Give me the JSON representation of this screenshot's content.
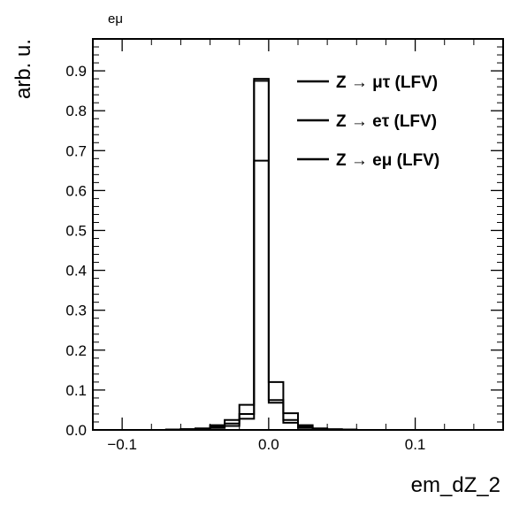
{
  "chart_data": {
    "type": "histogram",
    "channel_label": "eμ",
    "xlabel": "em_dZ_2",
    "ylabel": "arb. u.",
    "xlim": [
      -0.12,
      0.16
    ],
    "ylim": [
      0,
      0.98
    ],
    "x_ticks": [
      -0.1,
      0.0,
      0.1
    ],
    "x_tick_labels": [
      "−0.1",
      "0.0",
      "0.1"
    ],
    "y_ticks": [
      0,
      0.1,
      0.2,
      0.3,
      0.4,
      0.5,
      0.6,
      0.7,
      0.8,
      0.9
    ],
    "y_tick_labels": [
      "0.0",
      "0.1",
      "0.2",
      "0.3",
      "0.4",
      "0.5",
      "0.6",
      "0.7",
      "0.8",
      "0.9"
    ],
    "grid": false,
    "legend_position": "top-right",
    "bin_edges": [
      -0.12,
      -0.11,
      -0.1,
      -0.09,
      -0.08,
      -0.07,
      -0.06,
      -0.05,
      -0.04,
      -0.03,
      -0.02,
      -0.01,
      0.0,
      0.01,
      0.02,
      0.03,
      0.04,
      0.05,
      0.06,
      0.07,
      0.08,
      0.09,
      0.1,
      0.11,
      0.12,
      0.13,
      0.14,
      0.15,
      0.16
    ],
    "series": [
      {
        "name": "Z → μτ (LFV)",
        "legend_parts": [
          "Z ",
          "→",
          " μτ (LFV)"
        ],
        "color": "#000000",
        "values": [
          0,
          0,
          0,
          0,
          0,
          0.001,
          0.002,
          0.004,
          0.012,
          0.025,
          0.063,
          0.88,
          0.12,
          0.042,
          0.012,
          0.004,
          0.002,
          0.001,
          0,
          0,
          0,
          0,
          0,
          0,
          0,
          0,
          0,
          0
        ]
      },
      {
        "name": "Z → eτ (LFV)",
        "legend_parts": [
          "Z ",
          "→",
          " eτ (LFV)"
        ],
        "color": "#000000",
        "values": [
          0,
          0,
          0,
          0,
          0,
          0.001,
          0.002,
          0.003,
          0.008,
          0.016,
          0.04,
          0.875,
          0.075,
          0.025,
          0.008,
          0.003,
          0.001,
          0,
          0,
          0,
          0,
          0,
          0,
          0,
          0,
          0,
          0,
          0
        ]
      },
      {
        "name": "Z → eμ (LFV)",
        "legend_parts": [
          "Z ",
          "→",
          " eμ (LFV)"
        ],
        "color": "#000000",
        "values": [
          0,
          0,
          0,
          0,
          0,
          0,
          0.001,
          0.002,
          0.005,
          0.01,
          0.028,
          0.675,
          0.068,
          0.018,
          0.005,
          0.002,
          0.001,
          0,
          0,
          0,
          0,
          0,
          0,
          0,
          0,
          0,
          0,
          0
        ]
      }
    ]
  }
}
